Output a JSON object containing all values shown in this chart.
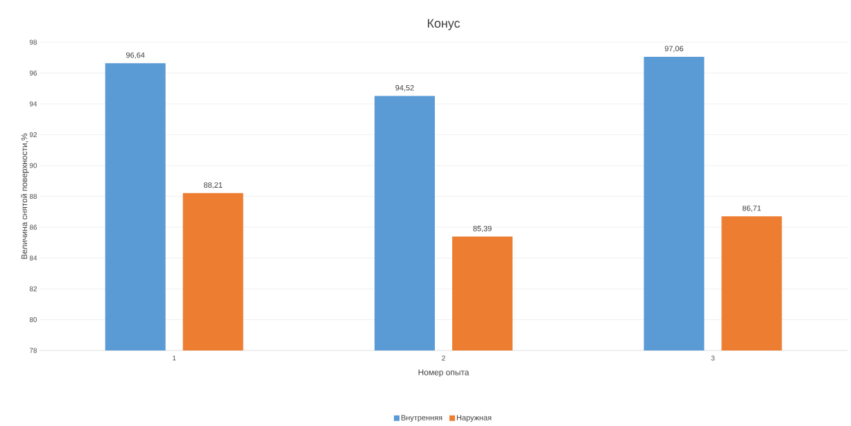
{
  "chart_data": {
    "type": "bar",
    "title": "Конус",
    "xlabel": "Номер опыта",
    "ylabel": "Величина снятой поверхности,%",
    "categories": [
      "1",
      "2",
      "3"
    ],
    "series": [
      {
        "name": "Внутренняя",
        "color": "#5b9bd5",
        "values": [
          96.64,
          94.52,
          97.06
        ],
        "value_labels": [
          "96,64",
          "94,52",
          "97,06"
        ]
      },
      {
        "name": "Наружная",
        "color": "#ed7d31",
        "values": [
          88.21,
          85.39,
          86.71
        ],
        "value_labels": [
          "88,21",
          "85,39",
          "86,71"
        ]
      }
    ],
    "ylim": [
      78,
      98
    ],
    "yticks": [
      78,
      80,
      82,
      84,
      86,
      88,
      90,
      92,
      94,
      96,
      98
    ],
    "grid": "y",
    "legend": "bottom"
  }
}
